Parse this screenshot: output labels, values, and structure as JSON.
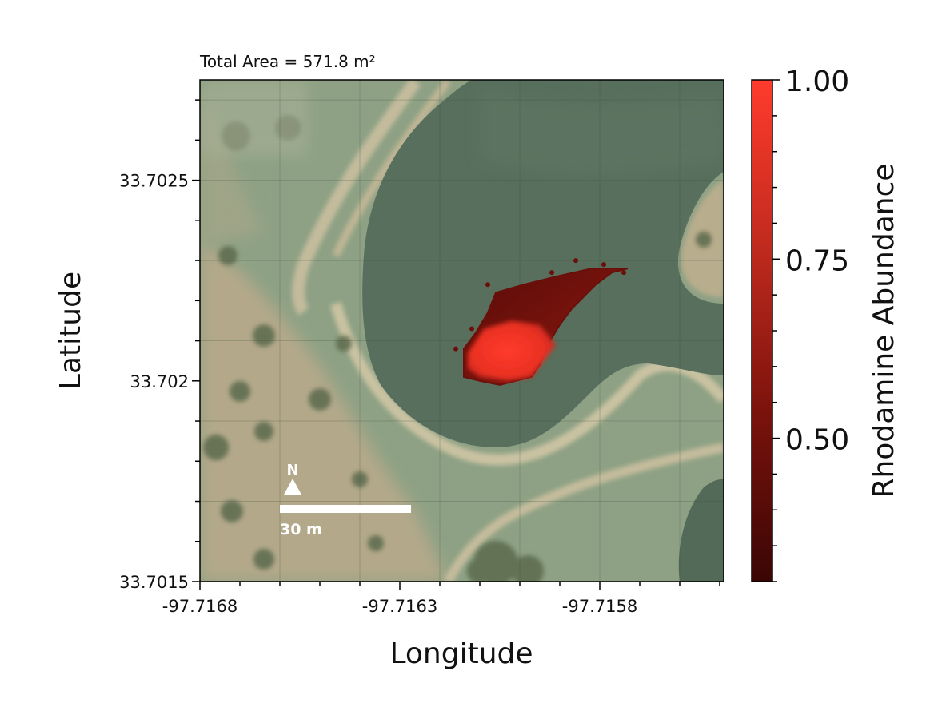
{
  "figure": {
    "annotation": "Total Area = 571.8 m²",
    "xlabel": "Longitude",
    "ylabel": "Latitude",
    "colorbar_label": "Rhodamine Abundance",
    "north_label": "N",
    "scalebar_label": "30 m",
    "scalebar_length_m": 30
  },
  "chart_data": {
    "type": "heatmap",
    "title": "",
    "annotation": "Total Area = 571.8 m²",
    "xlabel": "Longitude",
    "ylabel": "Latitude",
    "xlim": [
      -97.7168,
      -97.71549
    ],
    "ylim": [
      33.7015,
      33.70275
    ],
    "x_ticks": [
      -97.7168,
      -97.7163,
      -97.7158
    ],
    "x_tick_labels": [
      "-97.7168",
      "-97.7163",
      "-97.7158"
    ],
    "y_ticks": [
      33.7015,
      33.702,
      33.7025
    ],
    "y_tick_labels": [
      "33.7015",
      "33.702",
      "33.7025"
    ],
    "colorbar": {
      "label": "Rhodamine Abundance",
      "range": [
        0.3,
        1.0
      ],
      "ticks": [
        0.5,
        0.75,
        1.0
      ],
      "tick_labels": [
        "0.50",
        "0.75",
        "1.00"
      ],
      "colors": [
        "#3a0604",
        "#7a120c",
        "#c02a1e",
        "#ff3b2c"
      ]
    },
    "basemap": "satellite imagery of a pond with surrounding grass and trees",
    "plume": {
      "polygon": [
        [
          -97.71573,
          33.70228
        ],
        [
          -97.71577,
          33.70227
        ],
        [
          -97.71581,
          33.70224
        ],
        [
          -97.71583,
          33.70222
        ],
        [
          -97.71587,
          33.70218
        ],
        [
          -97.7159,
          33.70214
        ],
        [
          -97.71593,
          33.70209
        ],
        [
          -97.71595,
          33.70204
        ],
        [
          -97.71597,
          33.70201
        ],
        [
          -97.71601,
          33.702
        ],
        [
          -97.71605,
          33.70199
        ],
        [
          -97.7161,
          33.702
        ],
        [
          -97.71614,
          33.70201
        ],
        [
          -97.71614,
          33.70205
        ],
        [
          -97.71614,
          33.70208
        ],
        [
          -97.71611,
          33.70212
        ],
        [
          -97.71608,
          33.70217
        ],
        [
          -97.71606,
          33.70222
        ],
        [
          -97.71599,
          33.70224
        ],
        [
          -97.71591,
          33.70226
        ],
        [
          -97.71582,
          33.70228
        ]
      ],
      "high_core": [
        [
          -97.71595,
          33.70214
        ],
        [
          -97.71591,
          33.70209
        ],
        [
          -97.71594,
          33.70205
        ],
        [
          -97.71597,
          33.70201
        ],
        [
          -97.71603,
          33.702
        ],
        [
          -97.7161,
          33.70201
        ],
        [
          -97.71613,
          33.70203
        ],
        [
          -97.71613,
          33.70207
        ],
        [
          -97.71609,
          33.70213
        ],
        [
          -97.71602,
          33.70215
        ]
      ],
      "abundance_range_shown": [
        0.3,
        1.0
      ]
    },
    "grid": true,
    "legend": "colorbar right"
  }
}
